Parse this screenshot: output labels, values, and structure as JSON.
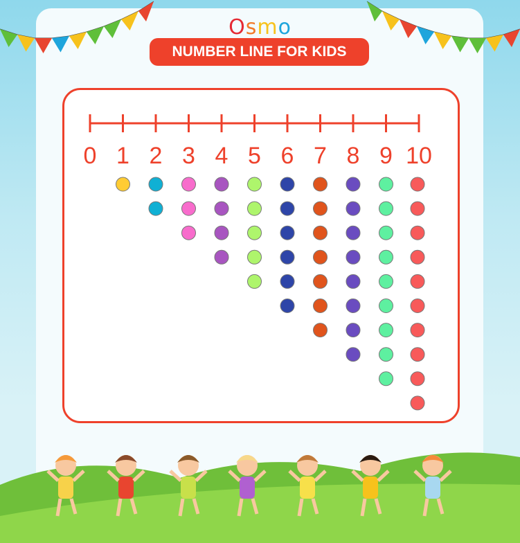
{
  "logo": {
    "letters": [
      "O",
      "s",
      "m",
      "o"
    ],
    "colors": [
      "#e52a34",
      "#f27a2a",
      "#f7c21c",
      "#1ea5dc"
    ]
  },
  "title": "NUMBER LINE FOR KIDS",
  "chart_data": {
    "type": "number-line-dot-diagram",
    "tick_labels": [
      "0",
      "1",
      "2",
      "3",
      "4",
      "5",
      "6",
      "7",
      "8",
      "9",
      "10"
    ],
    "dot_counts": [
      0,
      1,
      2,
      3,
      4,
      5,
      6,
      7,
      8,
      9,
      10
    ],
    "dot_colors": [
      "#ffffff",
      "#ffcc33",
      "#10b0d4",
      "#f86ccc",
      "#a855c0",
      "#aef56c",
      "#2e45a8",
      "#e0541c",
      "#6a4cc0",
      "#5ef0a0",
      "#f85a5a"
    ],
    "accent": "#ee412b"
  },
  "bunting_colors": [
    "#5fbf3a",
    "#f7c21c",
    "#e8452f",
    "#1ea5dc",
    "#f7c21c",
    "#5fbf3a"
  ]
}
